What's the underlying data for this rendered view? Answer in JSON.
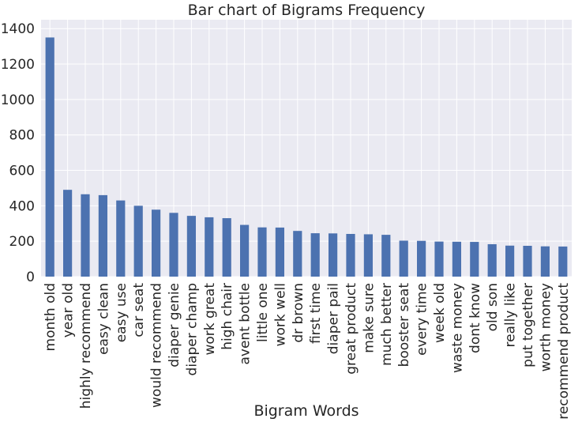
{
  "chart_data": {
    "type": "bar",
    "title": "Bar chart of Bigrams Frequency",
    "xlabel": "Bigram Words",
    "ylabel": "",
    "categories": [
      "month old",
      "year old",
      "highly recommend",
      "easy clean",
      "easy use",
      "car seat",
      "would recommend",
      "diaper genie",
      "diaper champ",
      "work great",
      "high chair",
      "avent bottle",
      "little one",
      "work well",
      "dr brown",
      "first time",
      "diaper pail",
      "great product",
      "make sure",
      "much better",
      "booster seat",
      "every time",
      "week old",
      "waste money",
      "dont know",
      "old son",
      "really like",
      "put together",
      "worth money",
      "recommend product"
    ],
    "values": [
      1350,
      490,
      465,
      460,
      430,
      400,
      378,
      360,
      343,
      335,
      330,
      292,
      278,
      277,
      258,
      245,
      244,
      241,
      239,
      236,
      203,
      202,
      198,
      197,
      196,
      183,
      175,
      174,
      171,
      170
    ],
    "ylim": [
      0,
      1450
    ],
    "yticks": [
      0,
      200,
      400,
      600,
      800,
      1000,
      1200,
      1400
    ],
    "grid": true,
    "legend": "none",
    "colors": {
      "bar": "#4c72b0",
      "plot_background": "#eaeaf2",
      "grid": "#ffffff",
      "text": "#262626"
    }
  }
}
